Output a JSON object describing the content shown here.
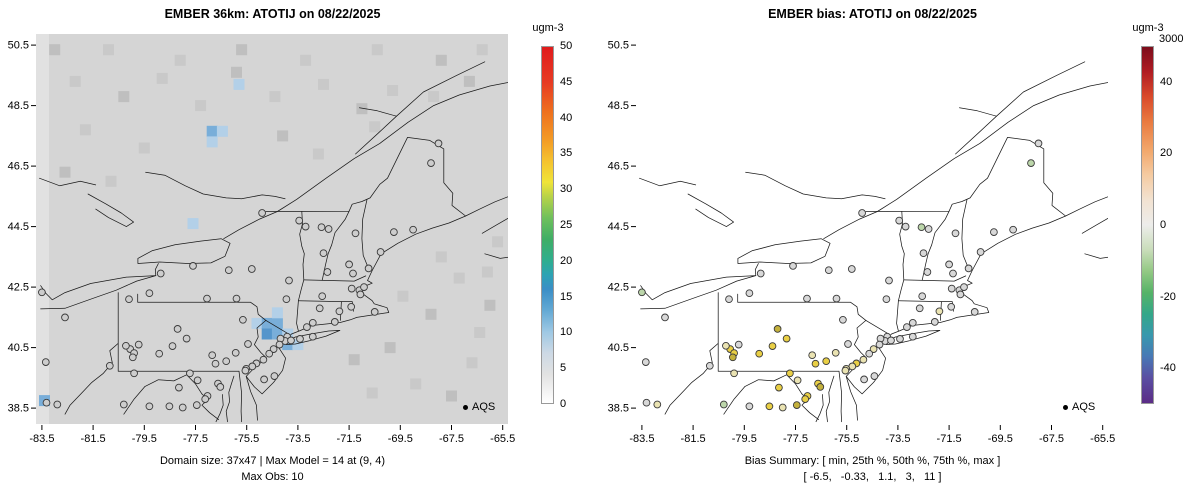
{
  "panels": [
    {
      "title": "EMBER 36km: ATOTIJ on 08/22/2025",
      "caption1": "Domain size: 37x47 | Max Model = 14 at (9, 4)",
      "caption2": "Max Obs: 10",
      "legend_label": "AQS",
      "colorbar": {
        "unit": "ugm-3",
        "range": [
          0,
          50
        ],
        "ticks": [
          0,
          5,
          10,
          15,
          20,
          25,
          30,
          35,
          40,
          45,
          50
        ],
        "stops": [
          {
            "v": 0,
            "c": "#ffffff"
          },
          {
            "v": 4,
            "c": "#e2e2e2"
          },
          {
            "v": 7,
            "c": "#cdd9e5"
          },
          {
            "v": 10,
            "c": "#9ec8e4"
          },
          {
            "v": 13,
            "c": "#64a9d4"
          },
          {
            "v": 16,
            "c": "#3a8ec6"
          },
          {
            "v": 18,
            "c": "#2da3b4"
          },
          {
            "v": 20,
            "c": "#2fae8f"
          },
          {
            "v": 23,
            "c": "#3fae66"
          },
          {
            "v": 26,
            "c": "#6fc05c"
          },
          {
            "v": 29,
            "c": "#b8d348"
          },
          {
            "v": 31,
            "c": "#f0e438"
          },
          {
            "v": 34,
            "c": "#f5c22f"
          },
          {
            "v": 37,
            "c": "#f39a25"
          },
          {
            "v": 41,
            "c": "#ee6f1e"
          },
          {
            "v": 45,
            "c": "#e73b24"
          },
          {
            "v": 50,
            "c": "#e01b1c"
          }
        ]
      }
    },
    {
      "title": "EMBER bias: ATOTIJ on 08/22/2025",
      "caption1": "Bias Summary: [ min, 25th %, 50th %, 75th %, max ]",
      "caption2": "[ -6.5,   -0.33,   1.1,   3,   11 ]",
      "legend_label": "AQS",
      "colorbar": {
        "unit": "ugm-3",
        "top_label": "3000",
        "range": [
          -50,
          50
        ],
        "ticks": [
          40,
          20,
          0,
          -20,
          -40
        ],
        "stops": [
          {
            "v": -50,
            "c": "#5b2c86"
          },
          {
            "v": -43,
            "c": "#5a4ea2"
          },
          {
            "v": -37,
            "c": "#4878b5"
          },
          {
            "v": -31,
            "c": "#3898ae"
          },
          {
            "v": -25,
            "c": "#34a789"
          },
          {
            "v": -19,
            "c": "#56b368"
          },
          {
            "v": -13,
            "c": "#93c884"
          },
          {
            "v": -7,
            "c": "#c9ddba"
          },
          {
            "v": 0,
            "c": "#ededeb"
          },
          {
            "v": 7,
            "c": "#f2e2d1"
          },
          {
            "v": 14,
            "c": "#f5cba2"
          },
          {
            "v": 21,
            "c": "#f2a76b"
          },
          {
            "v": 29,
            "c": "#e97a40"
          },
          {
            "v": 36,
            "c": "#d94a2b"
          },
          {
            "v": 43,
            "c": "#b01c23"
          },
          {
            "v": 50,
            "c": "#7c0d1c"
          }
        ]
      }
    }
  ],
  "axes": {
    "x_ticks": [
      "-83.5",
      "-81.5",
      "-79.5",
      "-77.5",
      "-75.5",
      "-73.5",
      "-71.5",
      "-69.5",
      "-67.5",
      "-65.5"
    ],
    "y_ticks": [
      "50.5",
      "48.5",
      "46.5",
      "44.5",
      "42.5",
      "40.5",
      "38.5"
    ]
  },
  "station_style": {
    "model_fill": "#cdcdcd",
    "stroke": "#3a3a3a",
    "palette": {
      "g": "#d8d8d8",
      "p": "#eae3b2",
      "y": "#e9cf45",
      "o": "#c4b13c",
      "l": "#bcd6aa"
    }
  },
  "stations": [
    [
      -68.01,
      47.25,
      "g"
    ],
    [
      -68.3,
      46.6,
      "l"
    ],
    [
      -69.0,
      44.4,
      "g"
    ],
    [
      -69.75,
      44.32,
      "g"
    ],
    [
      -70.27,
      43.66,
      "g"
    ],
    [
      -70.74,
      43.12,
      "g"
    ],
    [
      -73.2,
      44.5,
      "g"
    ],
    [
      -72.58,
      44.48,
      "l"
    ],
    [
      -72.3,
      44.42,
      "g"
    ],
    [
      -71.25,
      44.28,
      "g"
    ],
    [
      -72.5,
      43.62,
      "g"
    ],
    [
      -71.5,
      43.25,
      "g"
    ],
    [
      -71.35,
      42.95,
      "g"
    ],
    [
      -72.35,
      43.0,
      "g"
    ],
    [
      -71.1,
      42.4,
      "g"
    ],
    [
      -70.92,
      42.5,
      "g"
    ],
    [
      -71.06,
      42.26,
      "g"
    ],
    [
      -71.4,
      42.45,
      "g"
    ],
    [
      -72.55,
      42.2,
      "g"
    ],
    [
      -70.5,
      41.68,
      "g"
    ],
    [
      -71.42,
      41.85,
      "g"
    ],
    [
      -71.88,
      41.7,
      "p"
    ],
    [
      -72.65,
      41.8,
      "g"
    ],
    [
      -72.92,
      41.32,
      "g"
    ],
    [
      -73.15,
      41.18,
      "g"
    ],
    [
      -72.06,
      41.35,
      "g"
    ],
    [
      -73.92,
      40.86,
      "g"
    ],
    [
      -74.0,
      40.72,
      "g"
    ],
    [
      -73.77,
      40.74,
      "g"
    ],
    [
      -74.18,
      40.8,
      "g"
    ],
    [
      -74.22,
      40.6,
      "g"
    ],
    [
      -73.42,
      40.79,
      "g"
    ],
    [
      -72.92,
      40.86,
      "g"
    ],
    [
      -74.45,
      40.45,
      "p"
    ],
    [
      -74.62,
      40.3,
      "g"
    ],
    [
      -74.85,
      40.1,
      "p"
    ],
    [
      -75.12,
      39.98,
      "y"
    ],
    [
      -75.28,
      39.88,
      "p"
    ],
    [
      -75.52,
      39.8,
      "p"
    ],
    [
      -74.82,
      39.45,
      "g"
    ],
    [
      -74.42,
      39.56,
      "g"
    ],
    [
      -78.86,
      42.95,
      "g"
    ],
    [
      -77.6,
      43.2,
      "g"
    ],
    [
      -76.2,
      43.06,
      "g"
    ],
    [
      -75.3,
      43.1,
      "g"
    ],
    [
      -73.85,
      42.72,
      "g"
    ],
    [
      -73.95,
      42.1,
      "g"
    ],
    [
      -75.9,
      42.12,
      "g"
    ],
    [
      -77.05,
      42.12,
      "g"
    ],
    [
      -79.3,
      42.3,
      "g"
    ],
    [
      -73.45,
      44.7,
      "g"
    ],
    [
      -74.9,
      44.95,
      "g"
    ],
    [
      -80.05,
      40.45,
      "y"
    ],
    [
      -79.9,
      40.32,
      "y"
    ],
    [
      -80.22,
      40.56,
      "p"
    ],
    [
      -79.72,
      40.6,
      "g"
    ],
    [
      -79.95,
      40.18,
      "o"
    ],
    [
      -80.1,
      42.1,
      "g"
    ],
    [
      -78.92,
      40.3,
      "y"
    ],
    [
      -78.4,
      40.55,
      "y"
    ],
    [
      -77.85,
      40.8,
      "y"
    ],
    [
      -78.2,
      41.12,
      "o"
    ],
    [
      -76.85,
      40.25,
      "p"
    ],
    [
      -75.65,
      41.42,
      "g"
    ],
    [
      -75.45,
      40.62,
      "g"
    ],
    [
      -75.93,
      40.33,
      "p"
    ],
    [
      -76.3,
      40.05,
      "y"
    ],
    [
      -76.72,
      39.97,
      "y"
    ],
    [
      -75.55,
      39.74,
      "p"
    ],
    [
      -76.62,
      39.31,
      "y"
    ],
    [
      -76.53,
      39.2,
      "o"
    ],
    [
      -77.03,
      38.9,
      "y"
    ],
    [
      -77.12,
      38.8,
      "y"
    ],
    [
      -77.42,
      39.42,
      "p"
    ],
    [
      -78.15,
      39.18,
      "y"
    ],
    [
      -77.72,
      39.65,
      "y"
    ],
    [
      -78.52,
      38.56,
      "y"
    ],
    [
      -77.45,
      38.6,
      "o"
    ],
    [
      -78.0,
      38.52,
      "p"
    ],
    [
      -79.9,
      39.65,
      "p"
    ],
    [
      -80.85,
      39.9,
      "g"
    ],
    [
      -83.35,
      40.02,
      "g"
    ],
    [
      -83.5,
      42.33,
      "l"
    ],
    [
      -82.6,
      41.5,
      "g"
    ],
    [
      -83.32,
      38.68,
      "g"
    ],
    [
      -82.9,
      38.62,
      "p"
    ],
    [
      -80.3,
      38.62,
      "l"
    ],
    [
      -79.3,
      38.56,
      "g"
    ]
  ],
  "chart_data": [
    {
      "type": "heatmap",
      "title": "EMBER 36km: ATOTIJ on 08/22/2025",
      "xlim": [
        -83.8,
        -65.1
      ],
      "ylim": [
        37.9,
        51.0
      ],
      "x_ticks": [
        -83.5,
        -81.5,
        -79.5,
        -77.5,
        -75.5,
        -73.5,
        -71.5,
        -69.5,
        -67.5,
        -65.5
      ],
      "y_ticks": [
        50.5,
        48.5,
        46.5,
        44.5,
        42.5,
        40.5,
        38.5
      ],
      "grid": false,
      "colorbar": {
        "label": "ugm-3",
        "range": [
          0,
          50
        ],
        "ticks": [
          0,
          5,
          10,
          15,
          20,
          25,
          30,
          35,
          40,
          45,
          50
        ]
      },
      "legend": [
        {
          "label": "AQS",
          "marker": "point",
          "position": "bottom-right"
        }
      ],
      "stats": {
        "domain_size": "37x47",
        "max_model": 14,
        "max_model_cell": "(9, 4)",
        "max_obs": 10
      },
      "annotations": [
        "Domain size: 37x47 | Max Model = 14 at (9, 4)",
        "Max Obs: 10"
      ]
    },
    {
      "type": "scatter",
      "title": "EMBER bias: ATOTIJ on 08/22/2025",
      "xlim": [
        -83.8,
        -65.1
      ],
      "ylim": [
        37.9,
        51.0
      ],
      "x_ticks": [
        -83.5,
        -81.5,
        -79.5,
        -77.5,
        -75.5,
        -73.5,
        -71.5,
        -69.5,
        -67.5,
        -65.5
      ],
      "y_ticks": [
        50.5,
        48.5,
        46.5,
        44.5,
        42.5,
        40.5,
        38.5
      ],
      "grid": false,
      "colorbar": {
        "label": "ugm-3",
        "range": [
          -50,
          50
        ],
        "ticks": [
          40,
          20,
          0,
          -20,
          -40
        ],
        "top_value": 3000
      },
      "legend": [
        {
          "label": "AQS",
          "marker": "point",
          "position": "bottom-right"
        }
      ],
      "bias_summary": {
        "stats_order": [
          "min",
          "25th %",
          "50th %",
          "75th %",
          "max"
        ],
        "values": [
          -6.5,
          -0.33,
          1.1,
          3,
          11
        ]
      },
      "annotations": [
        "Bias Summary: [ min, 25th %, 50th %, 75th %, max ]",
        "[ -6.5,  -0.33,  1.1,  3,  11 ]"
      ]
    }
  ]
}
